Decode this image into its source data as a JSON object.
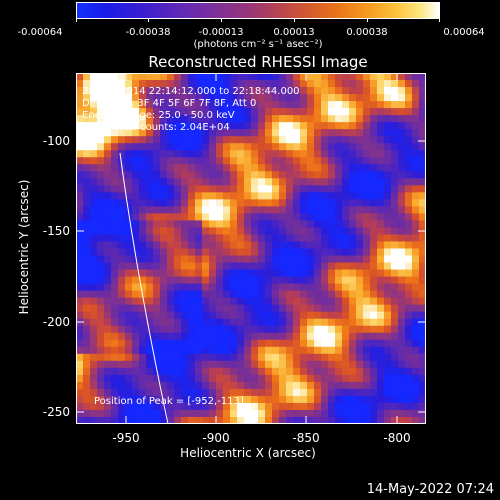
{
  "colorbar": {
    "ticks": [
      "-0.00064",
      "-0.00038",
      "-0.00013",
      "0.00013",
      "0.00038",
      "0.00064"
    ],
    "units": "(photons cm⁻² s⁻¹ asec⁻²)",
    "range": [
      -0.00064,
      0.00064
    ]
  },
  "title": "Reconstructed RHESSI Image",
  "info": {
    "time": "31-Mar-2014 22:14:12.000 to 22:18:44.000",
    "detectors": "Detectors: 3F 4F 5F 6F 7F 8F, Att 0",
    "energy": "Energy Range: 25.0 - 50.0 keV",
    "clean": "Clean    Total counts: 2.04E+04",
    "peak": "Position of Peak = [-952,-113]"
  },
  "axes": {
    "xlabel": "Heliocentric X (arcsec)",
    "ylabel": "Heliocentric Y (arcsec)",
    "xticks": [
      "-950",
      "-900",
      "-850",
      "-800"
    ],
    "yticks": [
      "-100",
      "-150",
      "-200",
      "-250"
    ],
    "xlim": [
      -974,
      -776
    ],
    "ylim": [
      -256,
      -58
    ]
  },
  "footer": {
    "date": "14-May-2022 07:24"
  }
}
